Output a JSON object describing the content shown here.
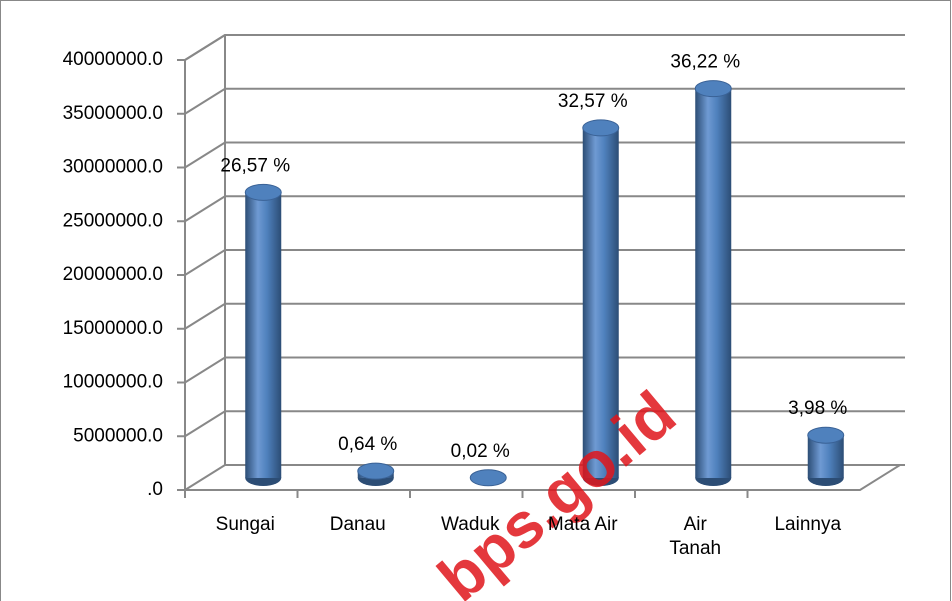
{
  "chart_data": {
    "type": "bar",
    "categories": [
      "Sungai",
      "Danau",
      "Waduk",
      "Mata Air",
      "Air Tanah",
      "Lainnya"
    ],
    "values": [
      26570000,
      640000,
      20000,
      32570000,
      36220000,
      3980000
    ],
    "value_labels": [
      "26,57 %",
      "0,64 %",
      "0,02 %",
      "32,57 %",
      "36,22 %",
      "3,98 %"
    ],
    "color": "#4f81bd",
    "ylim": [
      0,
      40000000
    ],
    "yticks": [
      {
        "value": 0,
        "label": ".0"
      },
      {
        "value": 5000000,
        "label": "5000000.0"
      },
      {
        "value": 10000000,
        "label": "10000000.0"
      },
      {
        "value": 15000000,
        "label": "15000000.0"
      },
      {
        "value": 20000000,
        "label": "20000000.0"
      },
      {
        "value": 25000000,
        "label": "25000000.0"
      },
      {
        "value": 30000000,
        "label": "30000000.0"
      },
      {
        "value": 35000000,
        "label": "35000000.0"
      },
      {
        "value": 40000000,
        "label": "40000000.0"
      }
    ],
    "grid": true,
    "watermark": "bps.go.id"
  }
}
